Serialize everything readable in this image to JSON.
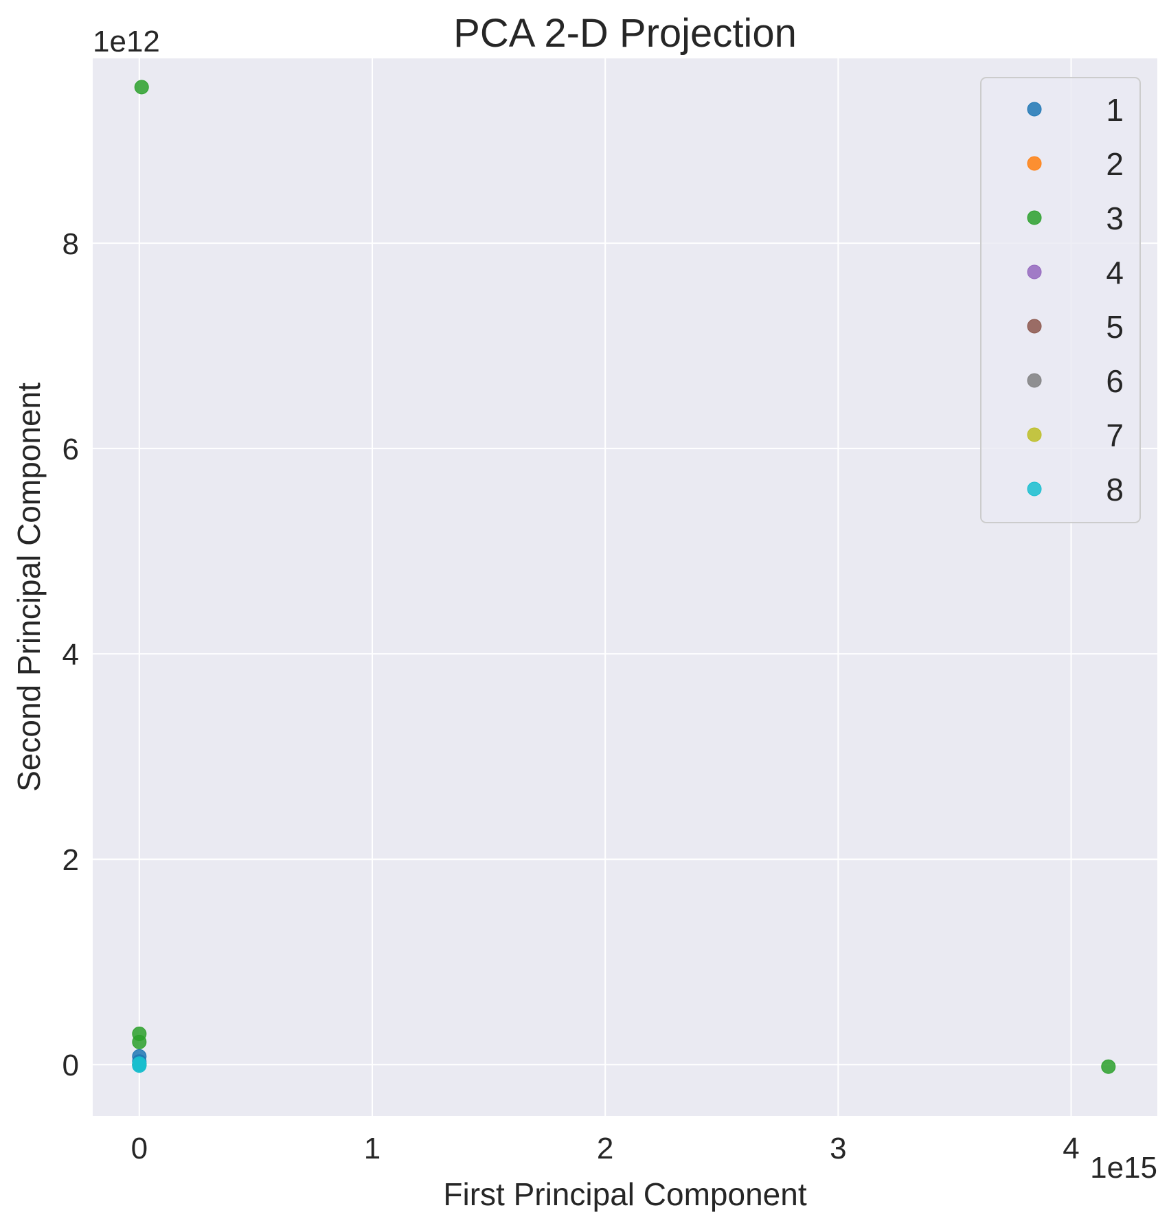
{
  "chart_data": {
    "type": "scatter",
    "title": "PCA 2-D Projection",
    "xlabel": "First Principal Component",
    "ylabel": "Second Principal Component",
    "x_exponent_label": "1e15",
    "y_exponent_label": "1e12",
    "x_scale": 1000000000000000.0,
    "y_scale": 1000000000000.0,
    "xlim": [
      -0.2,
      4.37
    ],
    "ylim": [
      -0.5,
      9.8
    ],
    "x_ticks": [
      0,
      1,
      2,
      3,
      4
    ],
    "x_tick_labels": [
      "0",
      "1",
      "2",
      "3",
      "4"
    ],
    "y_ticks": [
      0,
      2,
      4,
      6,
      8
    ],
    "y_tick_labels": [
      "0",
      "2",
      "4",
      "6",
      "8"
    ],
    "grid": true,
    "legend_position": "top-right",
    "series": [
      {
        "name": "1",
        "color": "#1f77b4",
        "points": [
          [
            0,
            0.08
          ],
          [
            0,
            0.03
          ],
          [
            0,
            0.0
          ]
        ]
      },
      {
        "name": "2",
        "color": "#ff7f0e",
        "points": [
          [
            0,
            0.0
          ]
        ]
      },
      {
        "name": "3",
        "color": "#2ca02c",
        "points": [
          [
            0.01,
            9.52
          ],
          [
            0,
            0.3
          ],
          [
            0,
            0.22
          ],
          [
            4.16,
            -0.02
          ]
        ]
      },
      {
        "name": "4",
        "color": "#9467bd",
        "points": [
          [
            0,
            0.0
          ]
        ]
      },
      {
        "name": "5",
        "color": "#8c564b",
        "points": [
          [
            0,
            0.0
          ]
        ]
      },
      {
        "name": "6",
        "color": "#7f7f7f",
        "points": [
          [
            0,
            0.0
          ]
        ]
      },
      {
        "name": "7",
        "color": "#bcbd22",
        "points": [
          [
            0,
            0.0
          ]
        ]
      },
      {
        "name": "8",
        "color": "#17becf",
        "points": [
          [
            0,
            0.01
          ],
          [
            0,
            -0.01
          ],
          [
            0,
            0.0
          ]
        ]
      }
    ]
  }
}
